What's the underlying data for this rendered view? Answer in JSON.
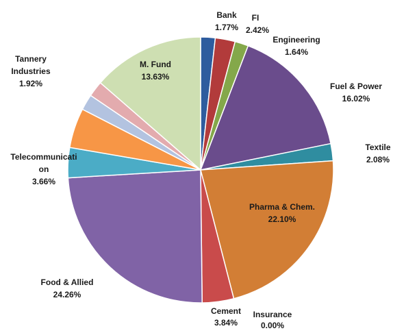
{
  "chart_data": {
    "type": "pie",
    "start_angle_deg": 0,
    "direction": "clockwise",
    "slices": [
      {
        "name": "Bank",
        "value": 1.77,
        "pct_label": "1.77%",
        "color": "#2E5C9E"
      },
      {
        "name": "FI",
        "value": 2.42,
        "pct_label": "2.42%",
        "color": "#B23B3B"
      },
      {
        "name": "Engineering",
        "value": 1.64,
        "pct_label": "1.64%",
        "color": "#84A84A"
      },
      {
        "name": "Fuel & Power",
        "value": 16.02,
        "pct_label": "16.02%",
        "color": "#6A4C8C"
      },
      {
        "name": "Textile",
        "value": 2.08,
        "pct_label": "2.08%",
        "color": "#2F8DA0"
      },
      {
        "name": "Pharma & Chem.",
        "value": 22.1,
        "pct_label": "22.10%",
        "color": "#D27E35"
      },
      {
        "name": "Insurance",
        "value": 0.0,
        "pct_label": "0.00%",
        "color": "#3C6FB0"
      },
      {
        "name": "Cement",
        "value": 3.84,
        "pct_label": "3.84%",
        "color": "#C94B4B"
      },
      {
        "name": "Food & Allied",
        "value": 24.26,
        "pct_label": "24.26%",
        "color": "#8063A6"
      },
      {
        "name": "Telecommunication",
        "value": 3.66,
        "pct_label": "3.66%",
        "color": "#4BACC6"
      },
      {
        "name": "",
        "value": 4.84,
        "pct_label": "",
        "color": "#F79646"
      },
      {
        "name": "",
        "value": 1.93,
        "pct_label": "",
        "color": "#B3C3E0"
      },
      {
        "name": "Tannery Industries",
        "value": 1.92,
        "pct_label": "1.92%",
        "color": "#E3ABAE"
      },
      {
        "name": "M. Fund",
        "value": 13.63,
        "pct_label": "13.63%",
        "color": "#CEDFB2"
      }
    ]
  }
}
